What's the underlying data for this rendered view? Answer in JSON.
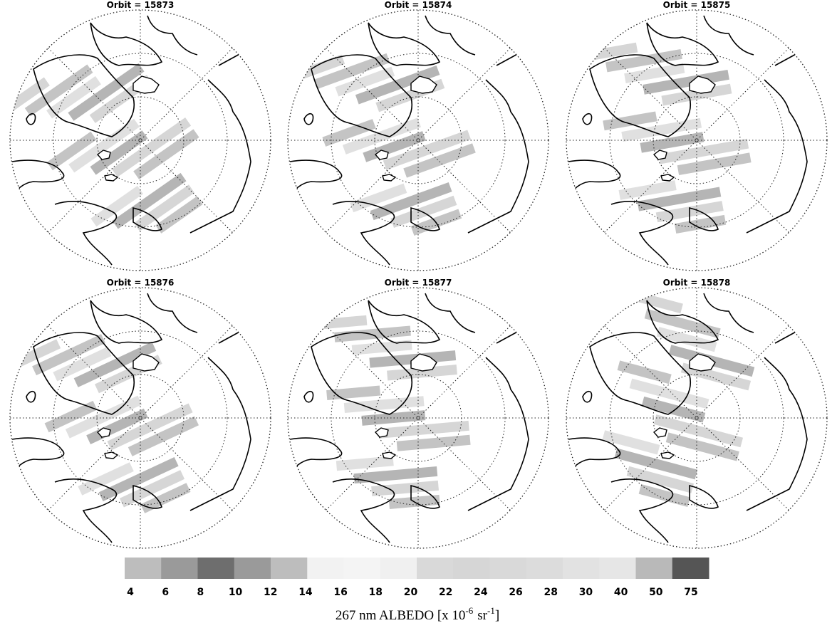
{
  "panels": [
    {
      "title": "Orbit = 15873"
    },
    {
      "title": "Orbit = 15874"
    },
    {
      "title": "Orbit = 15875"
    },
    {
      "title": "Orbit = 15876"
    },
    {
      "title": "Orbit = 15877"
    },
    {
      "title": "Orbit = 15878"
    }
  ],
  "colorbar": {
    "ticks": [
      4,
      6,
      8,
      10,
      12,
      14,
      16,
      18,
      20,
      22,
      24,
      26,
      28,
      30,
      40,
      50,
      75
    ],
    "colors": [
      "#bdbdbd",
      "#9a9a9a",
      "#6e6e6e",
      "#9a9a9a",
      "#bdbdbd",
      "#f2f2f2",
      "#f4f4f4",
      "#f0f0f0",
      "#d9d9d9",
      "#d6d6d6",
      "#d9d9d9",
      "#dcdcdc",
      "#e2e2e2",
      "#e6e6e6",
      "#b9b9b9",
      "#555555"
    ],
    "label_parts": [
      "267 nm ALBEDO [x 10",
      "-6",
      "sr",
      "-1",
      "]"
    ]
  }
}
